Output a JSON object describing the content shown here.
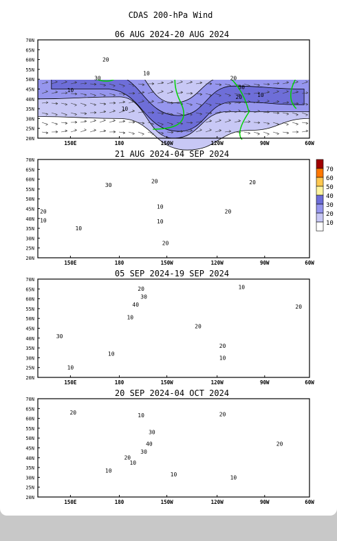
{
  "figure": {
    "title": "CDAS 200-hPa Wind",
    "lat_labels": [
      "70N",
      "65N",
      "60N",
      "55N",
      "50N",
      "45N",
      "40N",
      "35N",
      "30N",
      "25N",
      "20N"
    ],
    "lon_labels": [
      "150E",
      "180",
      "150W",
      "120W",
      "90W",
      "60W"
    ],
    "panels": [
      {
        "title": "06 AUG 2024-20 AUG 2024",
        "contour_labels": [
          "20",
          "30",
          "10",
          "10",
          "10",
          "20",
          "30",
          "20",
          "10"
        ]
      },
      {
        "title": "21 AUG 2024-04 SEP 2024",
        "contour_labels": [
          "30",
          "20",
          "20",
          "10",
          "10",
          "10",
          "20",
          "20",
          "20",
          "10"
        ]
      },
      {
        "title": "05 SEP 2024-19 SEP 2024",
        "contour_labels": [
          "20",
          "30",
          "40",
          "10",
          "10",
          "20",
          "20",
          "10",
          "20",
          "10",
          "30",
          "10"
        ]
      },
      {
        "title": "20 SEP 2024-04 OCT 2024",
        "contour_labels": [
          "20",
          "10",
          "20",
          "30",
          "40",
          "30",
          "10",
          "20",
          "10",
          "10",
          "10",
          "20"
        ]
      }
    ],
    "legend": {
      "labels": [
        "70",
        "60",
        "50",
        "40",
        "30",
        "20",
        "10"
      ],
      "colors": [
        "#a00000",
        "#ff7800",
        "#ffc850",
        "#fff5a0",
        "#6e6ed8",
        "#9696ee",
        "#c8c8f5",
        "#ffffff"
      ]
    },
    "colors": {
      "land_outline": "#00d200",
      "band_10_20": "#c8c8f5",
      "band_20_30": "#9696ee",
      "band_30_40": "#6e6ed8",
      "band_40_50": "#fff5a0",
      "band_50_60": "#ffc850"
    }
  }
}
